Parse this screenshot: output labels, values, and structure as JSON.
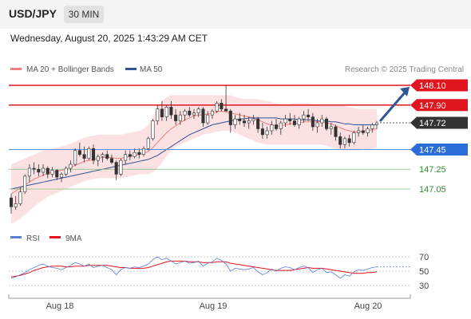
{
  "header": {
    "symbol": "USD/JPY",
    "timeframe": "30 MIN"
  },
  "datetime": "Wednesday, August 20, 2025 1:43:29 AM CET",
  "chart_data": [
    {
      "type": "candlestick",
      "legend": [
        {
          "name": "MA 20 + Bollinger Bands",
          "color": "#f08080"
        },
        {
          "name": "MA 50",
          "color": "#2f5597"
        }
      ],
      "source": "Research © 2025 Trading Central",
      "x_ticks": [
        "Aug 18",
        "Aug 19",
        "Aug 20"
      ],
      "ylim": [
        146.8,
        148.1
      ],
      "ohlc": [
        [
          146.96,
          147.0,
          146.8,
          146.87
        ],
        [
          146.87,
          146.98,
          146.84,
          146.9
        ],
        [
          146.9,
          147.06,
          146.88,
          147.02
        ],
        [
          147.02,
          147.2,
          147.0,
          147.18
        ],
        [
          147.18,
          147.3,
          147.12,
          147.26
        ],
        [
          147.26,
          147.32,
          147.2,
          147.25
        ],
        [
          147.25,
          147.3,
          147.18,
          147.22
        ],
        [
          147.22,
          147.3,
          147.18,
          147.26
        ],
        [
          147.26,
          147.28,
          147.16,
          147.2
        ],
        [
          147.2,
          147.27,
          147.17,
          147.24
        ],
        [
          147.24,
          147.25,
          147.14,
          147.17
        ],
        [
          147.17,
          147.22,
          147.12,
          147.2
        ],
        [
          147.2,
          147.28,
          147.18,
          147.26
        ],
        [
          147.26,
          147.34,
          147.22,
          147.3
        ],
        [
          147.3,
          147.46,
          147.28,
          147.44
        ],
        [
          147.44,
          147.52,
          147.38,
          147.4
        ],
        [
          147.4,
          147.48,
          147.32,
          147.36
        ],
        [
          147.36,
          147.48,
          147.34,
          147.46
        ],
        [
          147.46,
          147.5,
          147.3,
          147.34
        ],
        [
          147.34,
          147.4,
          147.28,
          147.38
        ],
        [
          147.38,
          147.42,
          147.32,
          147.4
        ],
        [
          147.4,
          147.44,
          147.34,
          147.36
        ],
        [
          147.36,
          147.4,
          147.3,
          147.32
        ],
        [
          147.32,
          147.34,
          147.14,
          147.2
        ],
        [
          147.2,
          147.36,
          147.18,
          147.34
        ],
        [
          147.34,
          147.44,
          147.3,
          147.4
        ],
        [
          147.4,
          147.44,
          147.34,
          147.38
        ],
        [
          147.38,
          147.46,
          147.36,
          147.42
        ],
        [
          147.42,
          147.46,
          147.36,
          147.4
        ],
        [
          147.4,
          147.48,
          147.38,
          147.46
        ],
        [
          147.46,
          147.58,
          147.44,
          147.56
        ],
        [
          147.56,
          147.76,
          147.54,
          147.74
        ],
        [
          147.74,
          147.9,
          147.7,
          147.86
        ],
        [
          147.86,
          147.94,
          147.74,
          147.78
        ],
        [
          147.78,
          147.9,
          147.74,
          147.88
        ],
        [
          147.88,
          147.94,
          147.76,
          147.8
        ],
        [
          147.8,
          147.86,
          147.7,
          147.74
        ],
        [
          147.74,
          147.84,
          147.7,
          147.8
        ],
        [
          147.8,
          147.86,
          147.74,
          147.84
        ],
        [
          147.84,
          147.88,
          147.78,
          147.8
        ],
        [
          147.8,
          147.86,
          147.76,
          147.82
        ],
        [
          147.82,
          147.88,
          147.78,
          147.86
        ],
        [
          147.86,
          147.88,
          147.68,
          147.72
        ],
        [
          147.72,
          147.84,
          147.7,
          147.8
        ],
        [
          147.8,
          147.86,
          147.76,
          147.84
        ],
        [
          147.84,
          147.94,
          147.82,
          147.92
        ],
        [
          147.92,
          147.96,
          147.84,
          147.86
        ],
        [
          147.86,
          148.1,
          147.84,
          147.84
        ],
        [
          147.84,
          147.86,
          147.62,
          147.7
        ],
        [
          147.7,
          147.8,
          147.66,
          147.76
        ],
        [
          147.76,
          147.82,
          147.7,
          147.74
        ],
        [
          147.74,
          147.8,
          147.68,
          147.72
        ],
        [
          147.72,
          147.78,
          147.66,
          147.74
        ],
        [
          147.74,
          147.8,
          147.7,
          147.76
        ],
        [
          147.76,
          147.78,
          147.62,
          147.66
        ],
        [
          147.66,
          147.72,
          147.56,
          147.6
        ],
        [
          147.6,
          147.68,
          147.56,
          147.64
        ],
        [
          147.64,
          147.74,
          147.6,
          147.7
        ],
        [
          147.7,
          147.76,
          147.64,
          147.66
        ],
        [
          147.66,
          147.74,
          147.6,
          147.72
        ],
        [
          147.72,
          147.8,
          147.68,
          147.76
        ],
        [
          147.76,
          147.82,
          147.7,
          147.74
        ],
        [
          147.74,
          147.8,
          147.68,
          147.7
        ],
        [
          147.7,
          147.78,
          147.66,
          147.76
        ],
        [
          147.76,
          147.84,
          147.72,
          147.8
        ],
        [
          147.8,
          147.86,
          147.74,
          147.78
        ],
        [
          147.78,
          147.82,
          147.64,
          147.68
        ],
        [
          147.68,
          147.76,
          147.62,
          147.72
        ],
        [
          147.72,
          147.8,
          147.68,
          147.76
        ],
        [
          147.76,
          147.78,
          147.64,
          147.66
        ],
        [
          147.66,
          147.72,
          147.6,
          147.68
        ],
        [
          147.68,
          147.7,
          147.54,
          147.58
        ],
        [
          147.58,
          147.62,
          147.46,
          147.5
        ],
        [
          147.5,
          147.58,
          147.46,
          147.56
        ],
        [
          147.56,
          147.6,
          147.48,
          147.52
        ],
        [
          147.52,
          147.64,
          147.5,
          147.62
        ],
        [
          147.62,
          147.68,
          147.58,
          147.64
        ],
        [
          147.64,
          147.7,
          147.6,
          147.62
        ],
        [
          147.62,
          147.68,
          147.58,
          147.66
        ],
        [
          147.66,
          147.72,
          147.62,
          147.7
        ],
        [
          147.7,
          147.74,
          147.66,
          147.72
        ]
      ],
      "ma20": [
        147.0,
        147.03,
        147.06,
        147.09,
        147.12,
        147.15,
        147.17,
        147.19,
        147.21,
        147.22,
        147.23,
        147.24,
        147.25,
        147.27,
        147.29,
        147.31,
        147.33,
        147.34,
        147.35,
        147.36,
        147.37,
        147.37,
        147.37,
        147.36,
        147.36,
        147.37,
        147.38,
        147.39,
        147.4,
        147.41,
        147.43,
        147.47,
        147.52,
        147.57,
        147.62,
        147.66,
        147.69,
        147.72,
        147.75,
        147.77,
        147.79,
        147.8,
        147.8,
        147.81,
        147.82,
        147.83,
        147.84,
        147.83,
        147.82,
        147.81,
        147.8,
        147.79,
        147.78,
        147.77,
        147.75,
        147.73,
        147.71,
        147.7,
        147.69,
        147.69,
        147.7,
        147.71,
        147.71,
        147.72,
        147.73,
        147.73,
        147.73,
        147.73,
        147.73,
        147.72,
        147.71,
        147.69,
        147.67,
        147.65,
        147.64,
        147.63,
        147.63,
        147.64,
        147.64,
        147.65,
        147.66
      ],
      "ma50": [
        147.05,
        147.06,
        147.07,
        147.08,
        147.09,
        147.1,
        147.11,
        147.12,
        147.13,
        147.14,
        147.15,
        147.16,
        147.17,
        147.18,
        147.19,
        147.2,
        147.21,
        147.22,
        147.23,
        147.24,
        147.25,
        147.26,
        147.27,
        147.28,
        147.29,
        147.3,
        147.31,
        147.32,
        147.33,
        147.34,
        147.35,
        147.37,
        147.39,
        147.42,
        147.45,
        147.48,
        147.51,
        147.54,
        147.57,
        147.6,
        147.62,
        147.64,
        147.66,
        147.68,
        147.7,
        147.71,
        147.72,
        147.73,
        147.74,
        147.75,
        147.76,
        147.76,
        147.77,
        147.77,
        147.77,
        147.77,
        147.77,
        147.77,
        147.77,
        147.76,
        147.76,
        147.76,
        147.76,
        147.75,
        147.75,
        147.75,
        147.75,
        147.74,
        147.74,
        147.74,
        147.73,
        147.73,
        147.72,
        147.71,
        147.71,
        147.7,
        147.7,
        147.7,
        147.7,
        147.7,
        147.7
      ],
      "bb_upper": [
        147.3,
        147.32,
        147.34,
        147.36,
        147.38,
        147.4,
        147.42,
        147.44,
        147.45,
        147.46,
        147.47,
        147.48,
        147.49,
        147.51,
        147.53,
        147.55,
        147.57,
        147.58,
        147.59,
        147.6,
        147.6,
        147.6,
        147.6,
        147.6,
        147.6,
        147.61,
        147.62,
        147.63,
        147.64,
        147.66,
        147.7,
        147.78,
        147.88,
        147.94,
        147.98,
        148.0,
        148.0,
        148.0,
        148.0,
        148.0,
        148.0,
        148.0,
        148.0,
        148.0,
        148.0,
        148.0,
        148.0,
        148.0,
        148.0,
        147.98,
        147.97,
        147.96,
        147.96,
        147.96,
        147.96,
        147.95,
        147.94,
        147.93,
        147.92,
        147.91,
        147.91,
        147.91,
        147.92,
        147.92,
        147.92,
        147.92,
        147.91,
        147.91,
        147.9,
        147.9,
        147.9,
        147.9,
        147.9,
        147.89,
        147.88,
        147.87,
        147.86,
        147.86,
        147.86,
        147.86,
        147.86
      ],
      "bb_lower": [
        146.7,
        146.72,
        146.75,
        146.79,
        146.83,
        146.87,
        146.91,
        146.94,
        146.97,
        146.99,
        147.01,
        147.03,
        147.05,
        147.07,
        147.09,
        147.11,
        147.13,
        147.14,
        147.15,
        147.16,
        147.16,
        147.16,
        147.16,
        147.16,
        147.16,
        147.17,
        147.18,
        147.19,
        147.2,
        147.2,
        147.2,
        147.22,
        147.26,
        147.32,
        147.38,
        147.44,
        147.48,
        147.5,
        147.52,
        147.54,
        147.56,
        147.58,
        147.6,
        147.61,
        147.62,
        147.63,
        147.64,
        147.64,
        147.64,
        147.62,
        147.6,
        147.58,
        147.56,
        147.54,
        147.52,
        147.51,
        147.5,
        147.5,
        147.5,
        147.5,
        147.5,
        147.5,
        147.5,
        147.5,
        147.5,
        147.5,
        147.5,
        147.5,
        147.5,
        147.49,
        147.47,
        147.46,
        147.45,
        147.44,
        147.44,
        147.44,
        147.44,
        147.45,
        147.45,
        147.46,
        147.47
      ],
      "levels": [
        {
          "price": 148.1,
          "label": "148.10",
          "kind": "resistance",
          "color": "#e0151d"
        },
        {
          "price": 147.9,
          "label": "147.90",
          "kind": "resistance",
          "color": "#e0151d"
        },
        {
          "price": 147.72,
          "label": "147.72",
          "kind": "last",
          "color": "#333333"
        },
        {
          "price": 147.45,
          "label": "147.45",
          "kind": "pivot",
          "color": "#2a6dd9"
        },
        {
          "price": 147.25,
          "label": "147.25",
          "kind": "support",
          "color": "#2e8b2e"
        },
        {
          "price": 147.05,
          "label": "147.05",
          "kind": "support",
          "color": "#2e8b2e"
        }
      ],
      "forecast_target": 148.1
    },
    {
      "type": "line",
      "legend": [
        {
          "name": "RSI",
          "color": "#5b7fd8"
        },
        {
          "name": "9MA",
          "color": "#e0151d"
        }
      ],
      "ylim": [
        25,
        75
      ],
      "y_ticks": [
        30,
        50,
        70
      ],
      "rsi": [
        40,
        42,
        45,
        48,
        52,
        55,
        58,
        60,
        57,
        55,
        54,
        52,
        55,
        58,
        62,
        60,
        57,
        60,
        55,
        57,
        58,
        55,
        52,
        45,
        52,
        55,
        54,
        56,
        55,
        57,
        60,
        66,
        70,
        66,
        68,
        64,
        60,
        62,
        64,
        61,
        62,
        64,
        57,
        61,
        63,
        68,
        65,
        60,
        50,
        54,
        53,
        52,
        53,
        55,
        49,
        45,
        48,
        53,
        50,
        54,
        56,
        55,
        52,
        55,
        57,
        55,
        48,
        52,
        54,
        48,
        49,
        45,
        40,
        45,
        43,
        49,
        52,
        51,
        53,
        55,
        56
      ],
      "rsi_ma9": [
        42,
        43,
        44,
        46,
        48,
        51,
        53,
        55,
        56,
        57,
        57,
        57,
        56,
        56,
        57,
        57,
        57,
        58,
        58,
        58,
        58,
        58,
        57,
        56,
        55,
        55,
        54,
        54,
        54,
        54,
        55,
        57,
        59,
        61,
        63,
        64,
        64,
        64,
        64,
        63,
        63,
        63,
        62,
        62,
        62,
        63,
        63,
        63,
        61,
        60,
        59,
        58,
        57,
        56,
        55,
        54,
        53,
        52,
        51,
        51,
        51,
        51,
        52,
        53,
        54,
        55,
        54,
        54,
        54,
        53,
        52,
        51,
        50,
        49,
        48,
        47,
        47,
        47,
        48,
        48,
        49
      ]
    }
  ]
}
